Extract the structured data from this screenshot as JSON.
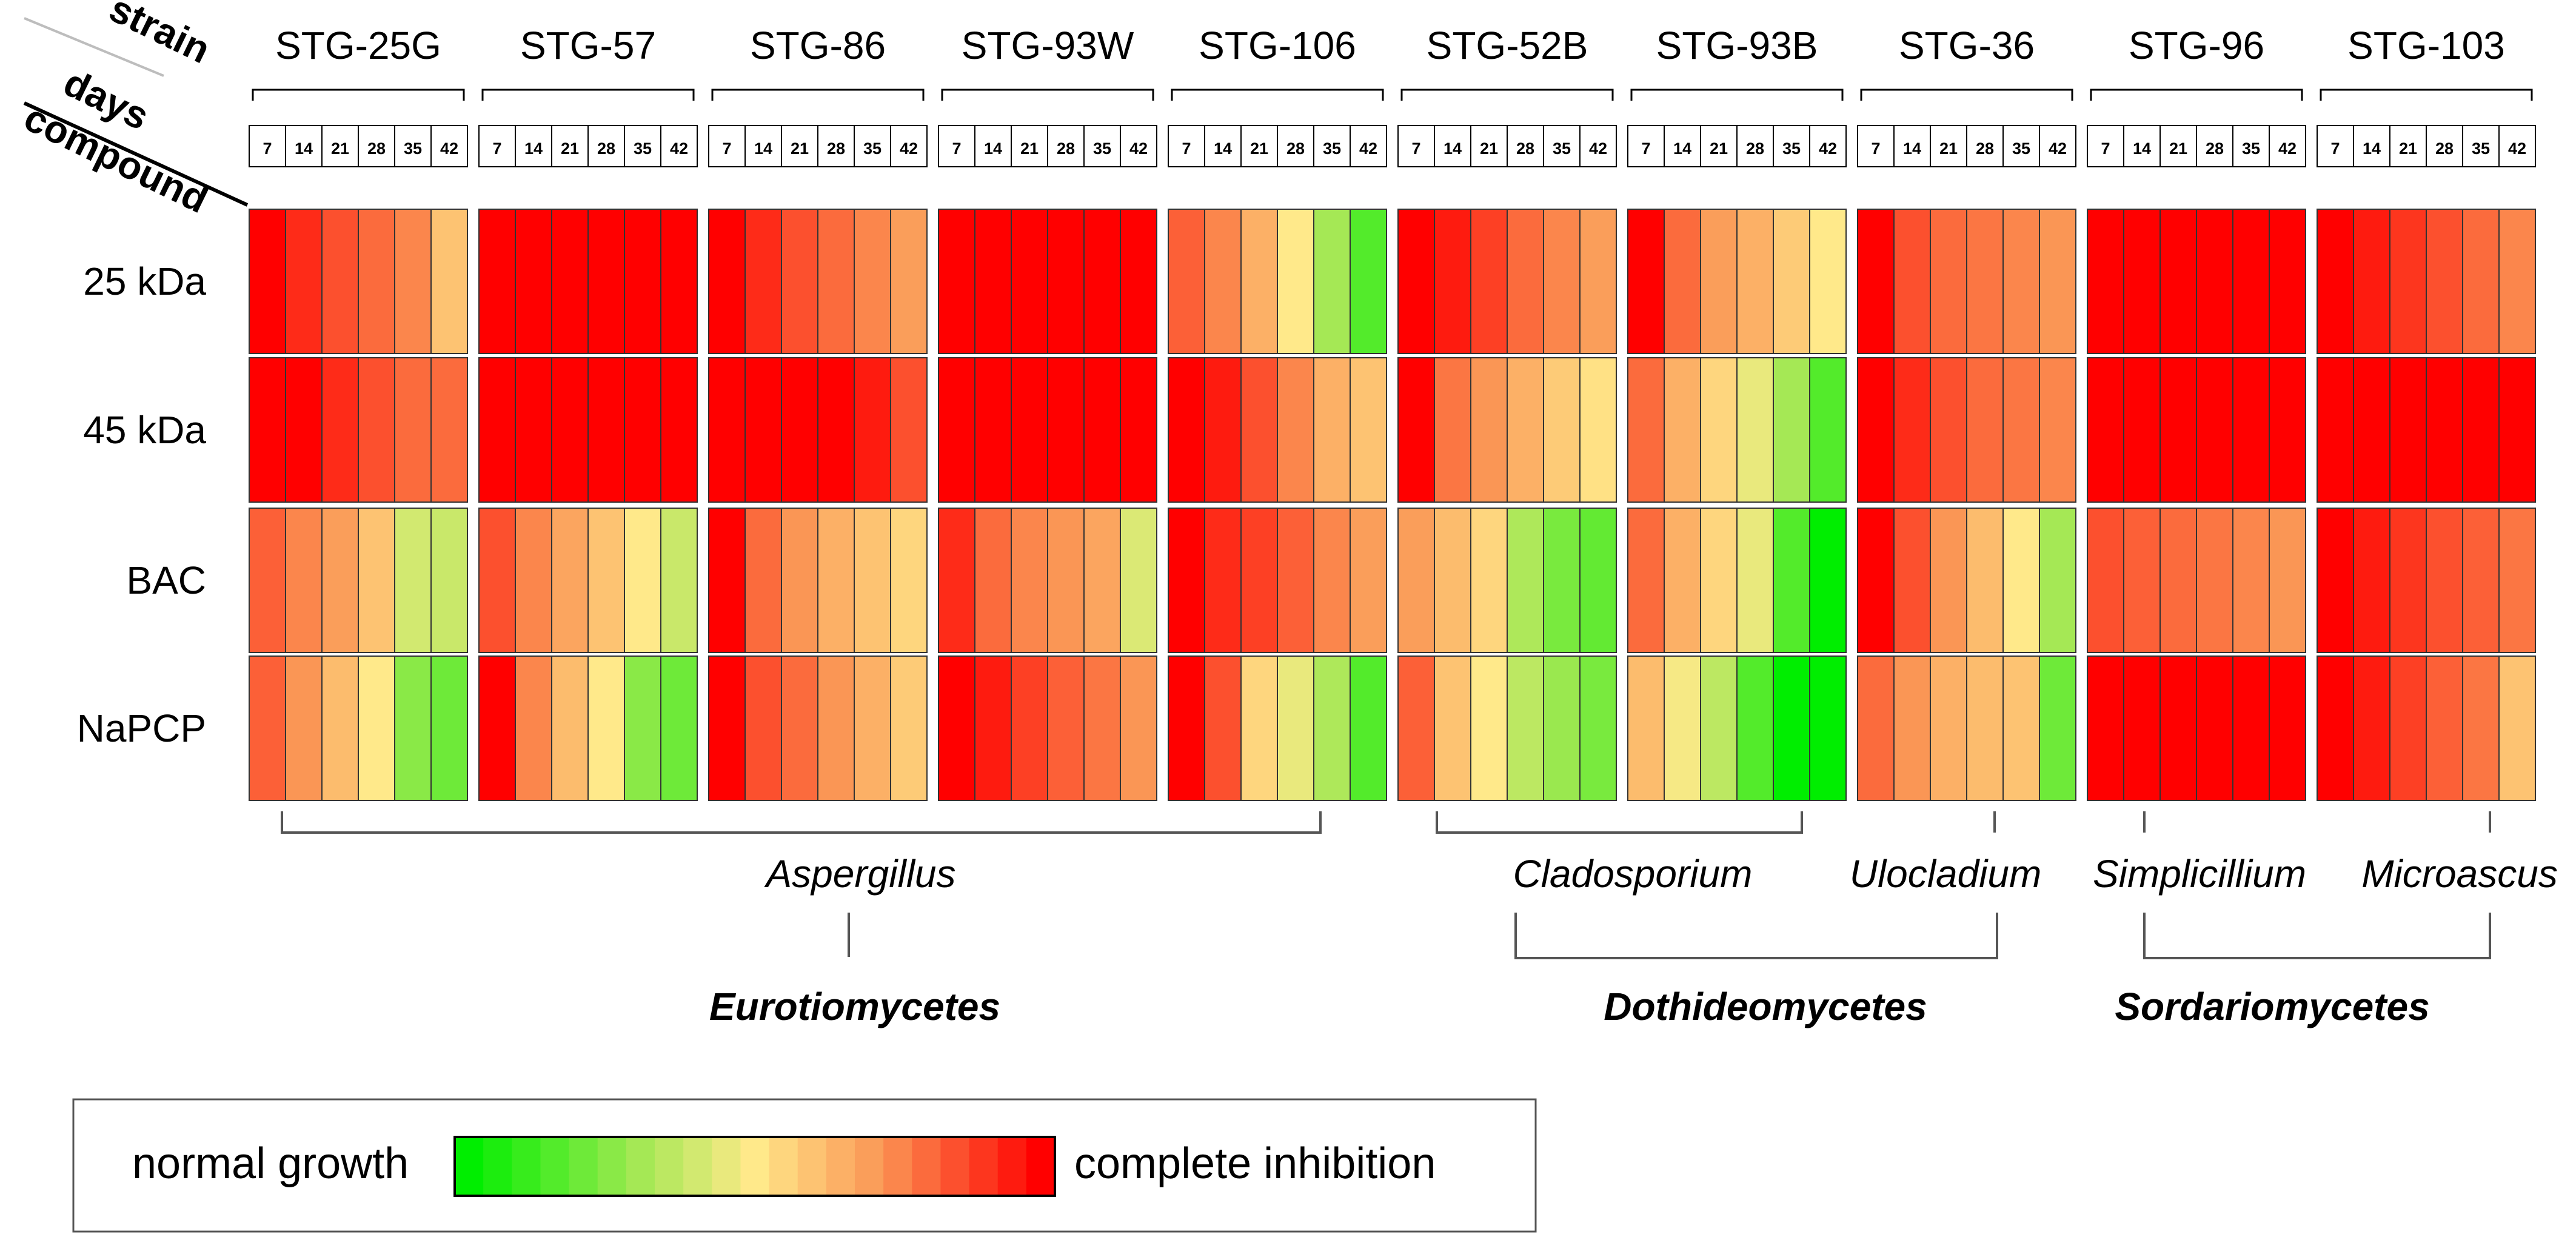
{
  "chart_data": {
    "type": "heatmap",
    "corner_labels": {
      "strain": "strain",
      "days": "days",
      "compound": "compound"
    },
    "strains": [
      "STG-25G",
      "STG-57",
      "STG-86",
      "STG-93W",
      "STG-106",
      "STG-52B",
      "STG-93B",
      "STG-36",
      "STG-96",
      "STG-103"
    ],
    "days": [
      "7",
      "14",
      "21",
      "28",
      "35",
      "42"
    ],
    "compounds": [
      "25 kDa",
      "45 kDa",
      "BAC",
      "NaPCP"
    ],
    "scale": {
      "min": 0,
      "max": 1,
      "meaning": "0 = normal growth, 1 = complete inhibition"
    },
    "values": [
      [
        [
          1.0,
          0.92,
          0.85,
          0.8,
          0.75,
          0.6
        ],
        [
          1.0,
          1.0,
          1.0,
          1.0,
          1.0,
          1.0
        ],
        [
          1.0,
          0.92,
          0.85,
          0.8,
          0.75,
          0.7
        ],
        [
          1.0,
          1.0,
          1.0,
          1.0,
          1.0,
          1.0
        ],
        [
          0.82,
          0.75,
          0.65,
          0.5,
          0.3,
          0.15
        ],
        [
          1.0,
          0.95,
          0.88,
          0.8,
          0.75,
          0.7
        ],
        [
          1.0,
          0.8,
          0.7,
          0.65,
          0.58,
          0.5
        ],
        [
          1.0,
          0.85,
          0.8,
          0.78,
          0.75,
          0.72
        ],
        [
          1.0,
          1.0,
          1.0,
          1.0,
          1.0,
          1.0
        ],
        [
          1.0,
          0.95,
          0.9,
          0.85,
          0.8,
          0.75
        ]
      ],
      [
        [
          1.0,
          1.0,
          0.92,
          0.85,
          0.8,
          0.8
        ],
        [
          1.0,
          1.0,
          1.0,
          1.0,
          1.0,
          1.0
        ],
        [
          1.0,
          1.0,
          1.0,
          1.0,
          0.95,
          0.85
        ],
        [
          1.0,
          1.0,
          1.0,
          1.0,
          1.0,
          1.0
        ],
        [
          1.0,
          0.95,
          0.85,
          0.75,
          0.65,
          0.6
        ],
        [
          1.0,
          0.78,
          0.72,
          0.65,
          0.58,
          0.52
        ],
        [
          0.8,
          0.65,
          0.55,
          0.45,
          0.3,
          0.15
        ],
        [
          1.0,
          0.92,
          0.85,
          0.8,
          0.78,
          0.75
        ],
        [
          1.0,
          1.0,
          1.0,
          1.0,
          1.0,
          1.0
        ],
        [
          1.0,
          1.0,
          1.0,
          1.0,
          1.0,
          1.0
        ]
      ],
      [
        [
          0.82,
          0.75,
          0.7,
          0.6,
          0.4,
          0.38
        ],
        [
          0.85,
          0.75,
          0.68,
          0.6,
          0.5,
          0.38
        ],
        [
          1.0,
          0.8,
          0.72,
          0.65,
          0.6,
          0.55
        ],
        [
          0.92,
          0.8,
          0.75,
          0.72,
          0.68,
          0.42
        ],
        [
          1.0,
          0.92,
          0.88,
          0.82,
          0.75,
          0.7
        ],
        [
          0.7,
          0.62,
          0.55,
          0.32,
          0.22,
          0.18
        ],
        [
          0.8,
          0.65,
          0.55,
          0.45,
          0.15,
          0.0
        ],
        [
          1.0,
          0.85,
          0.72,
          0.62,
          0.5,
          0.3
        ],
        [
          0.85,
          0.82,
          0.8,
          0.78,
          0.75,
          0.72
        ],
        [
          1.0,
          0.95,
          0.9,
          0.85,
          0.82,
          0.78
        ]
      ],
      [
        [
          0.82,
          0.72,
          0.62,
          0.5,
          0.25,
          0.2
        ],
        [
          1.0,
          0.75,
          0.62,
          0.5,
          0.25,
          0.2
        ],
        [
          1.0,
          0.85,
          0.8,
          0.72,
          0.65,
          0.58
        ],
        [
          1.0,
          0.95,
          0.88,
          0.82,
          0.78,
          0.72
        ],
        [
          1.0,
          0.85,
          0.55,
          0.45,
          0.32,
          0.15
        ],
        [
          0.82,
          0.6,
          0.5,
          0.35,
          0.28,
          0.22
        ],
        [
          0.62,
          0.48,
          0.35,
          0.15,
          0.0,
          0.0
        ],
        [
          0.8,
          0.72,
          0.65,
          0.62,
          0.6,
          0.2
        ],
        [
          1.0,
          1.0,
          1.0,
          1.0,
          1.0,
          1.0
        ],
        [
          1.0,
          0.95,
          0.88,
          0.82,
          0.78,
          0.6
        ]
      ]
    ],
    "genus_labels": [
      "Aspergillus",
      "Cladosporium",
      "Ulocladium",
      "Simplicillium",
      "Microascus"
    ],
    "class_labels": [
      "Eurotiomycetes",
      "Dothideomycetes",
      "Sordariomycetes"
    ],
    "legend": {
      "low_label": "normal growth",
      "high_label": "complete inhibition"
    }
  }
}
